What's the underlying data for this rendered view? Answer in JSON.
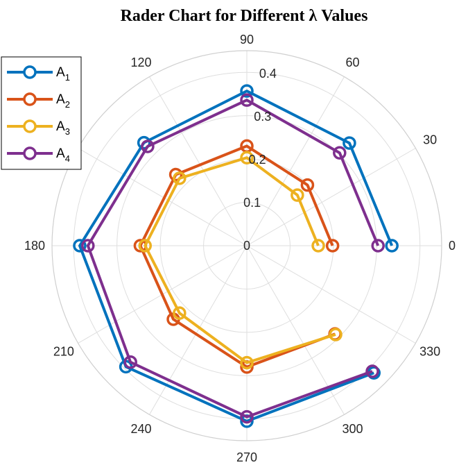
{
  "chart_data": {
    "type": "polar-line",
    "title": "Rader Chart for Different λ Values",
    "angles_deg": [
      0,
      30,
      60,
      90,
      120,
      150,
      180,
      210,
      240,
      270,
      300,
      330
    ],
    "angle_tick_labels": [
      "0",
      "30",
      "60",
      "90",
      "120",
      "150",
      "180",
      "210",
      "240",
      "270",
      "300",
      "330"
    ],
    "data_angles_deg": [
      0,
      45,
      90,
      135,
      180,
      225,
      270,
      315
    ],
    "radial_ticks": [
      0,
      0.1,
      0.2,
      0.3,
      0.4
    ],
    "radial_tick_labels": [
      "0",
      "0.1",
      "0.2",
      "0.3",
      "0.4"
    ],
    "rlim": [
      0,
      0.45
    ],
    "grid": true,
    "legend_position": "top-left",
    "series": [
      {
        "name": "A",
        "subscript": "1",
        "color": "#0072BD",
        "values": [
          0.335,
          0.335,
          0.357,
          0.336,
          0.386,
          0.395,
          0.405,
          0.415
        ]
      },
      {
        "name": "A",
        "subscript": "2",
        "color": "#D95319",
        "values": [
          0.198,
          0.198,
          0.23,
          0.232,
          0.246,
          0.24,
          0.28,
          0.288
        ]
      },
      {
        "name": "A",
        "subscript": "3",
        "color": "#EDB120",
        "values": [
          0.165,
          0.165,
          0.203,
          0.22,
          0.235,
          0.22,
          0.27,
          0.29
        ]
      },
      {
        "name": "A",
        "subscript": "4",
        "color": "#7E2F8E",
        "values": [
          0.303,
          0.303,
          0.336,
          0.324,
          0.367,
          0.38,
          0.395,
          0.41
        ]
      }
    ]
  }
}
